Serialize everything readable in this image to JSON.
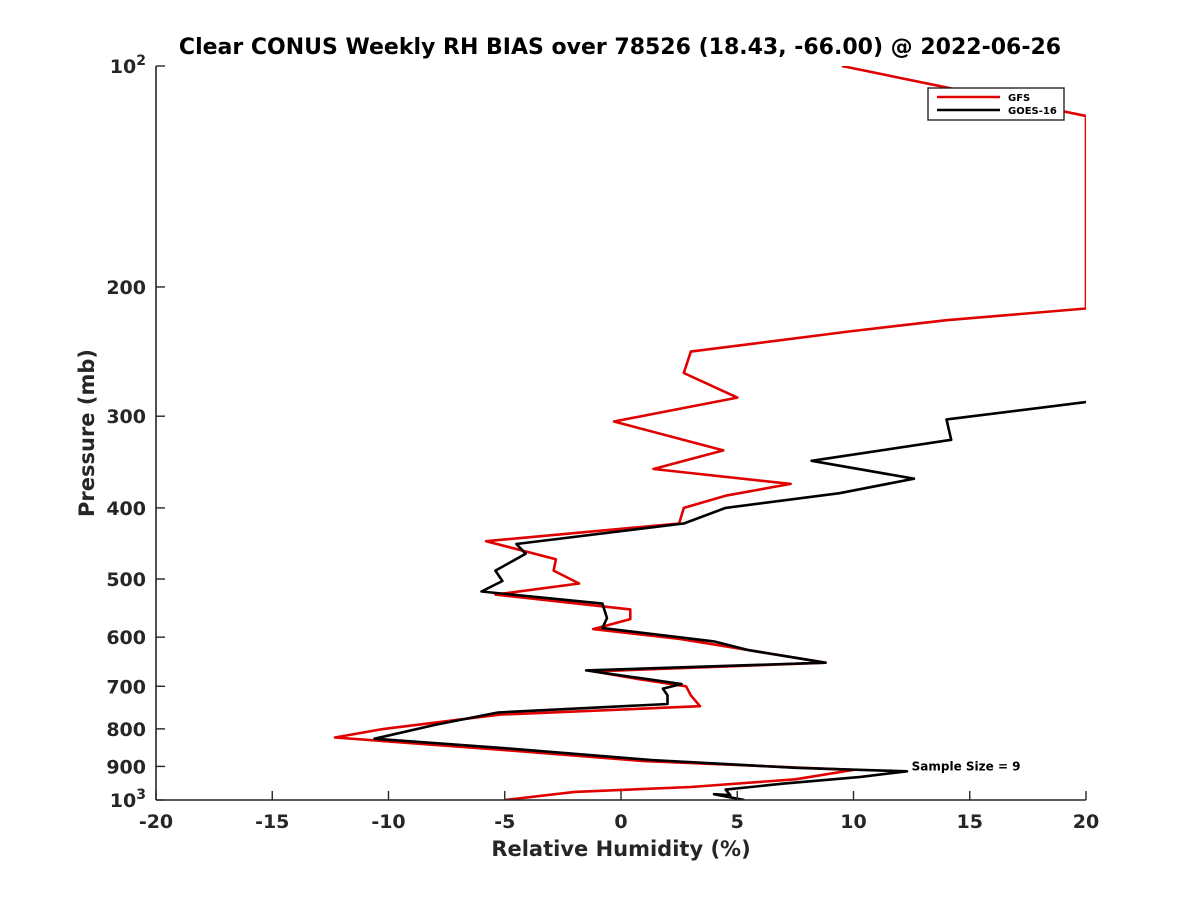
{
  "chart_data": {
    "type": "line",
    "title": "Clear CONUS Weekly RH BIAS over 78526 (18.43, -66.00) @ 2022-06-26",
    "xlabel": "Relative Humidity (%)",
    "ylabel": "Pressure (mb)",
    "xlim": [
      -20,
      20
    ],
    "ylim": [
      100,
      1000
    ],
    "y_scale": "log",
    "y_reversed": true,
    "xticks": [
      -20,
      -15,
      -10,
      -5,
      0,
      5,
      10,
      15,
      20
    ],
    "xtick_labels": [
      "-20",
      "-15",
      "-10",
      "-5",
      "0",
      "5",
      "10",
      "15",
      "20"
    ],
    "yticks": [
      100,
      200,
      300,
      400,
      500,
      600,
      700,
      800,
      900,
      1000
    ],
    "ytick_labels": [
      {
        "base": "10",
        "exp": "2"
      },
      {
        "base": "200",
        "exp": ""
      },
      {
        "base": "300",
        "exp": ""
      },
      {
        "base": "400",
        "exp": ""
      },
      {
        "base": "500",
        "exp": ""
      },
      {
        "base": "600",
        "exp": ""
      },
      {
        "base": "700",
        "exp": ""
      },
      {
        "base": "800",
        "exp": ""
      },
      {
        "base": "900",
        "exp": ""
      },
      {
        "base": "10",
        "exp": "3"
      }
    ],
    "grid": false,
    "legend_position": "top-right",
    "series": [
      {
        "name": "GFS",
        "color": "#e00000",
        "points": [
          [
            9.5,
            100
          ],
          [
            20,
            117
          ],
          [
            20,
            214
          ],
          [
            14,
            222
          ],
          [
            9.8,
            230
          ],
          [
            3,
            245
          ],
          [
            2.7,
            262
          ],
          [
            5,
            283
          ],
          [
            -0.3,
            305
          ],
          [
            4.4,
            334
          ],
          [
            1.4,
            354
          ],
          [
            7.3,
            371
          ],
          [
            4.5,
            385
          ],
          [
            2.7,
            400
          ],
          [
            2.5,
            420
          ],
          [
            -5.8,
            444
          ],
          [
            -2.8,
            470
          ],
          [
            -2.9,
            487
          ],
          [
            -1.8,
            507
          ],
          [
            -5.4,
            525
          ],
          [
            0.4,
            550
          ],
          [
            0.4,
            567
          ],
          [
            -1.2,
            585
          ],
          [
            2.5,
            603
          ],
          [
            8.8,
            650
          ],
          [
            -1.2,
            668
          ],
          [
            0.6,
            683
          ],
          [
            2.8,
            700
          ],
          [
            3.0,
            720
          ],
          [
            3.4,
            745
          ],
          [
            -5.2,
            765
          ],
          [
            -10.2,
            800
          ],
          [
            -12.3,
            822
          ],
          [
            -5,
            855
          ],
          [
            1,
            885
          ],
          [
            10.0,
            910
          ],
          [
            7.5,
            937
          ],
          [
            3,
            960
          ],
          [
            -2,
            975
          ],
          [
            -5,
            1000
          ]
        ]
      },
      {
        "name": "GOES-16",
        "color": "#000000",
        "points": [
          [
            20,
            287
          ],
          [
            14,
            303
          ],
          [
            14.2,
            323
          ],
          [
            8.2,
            345
          ],
          [
            12.6,
            365
          ],
          [
            9.4,
            382
          ],
          [
            4.5,
            400
          ],
          [
            2.7,
            420
          ],
          [
            -4.5,
            448
          ],
          [
            -4.1,
            462
          ],
          [
            -5.4,
            487
          ],
          [
            -5.1,
            503
          ],
          [
            -6.0,
            520
          ],
          [
            -0.8,
            540
          ],
          [
            -0.6,
            565
          ],
          [
            -0.8,
            583
          ],
          [
            4,
            608
          ],
          [
            5.5,
            625
          ],
          [
            8.8,
            650
          ],
          [
            -1.5,
            666
          ],
          [
            2.6,
            695
          ],
          [
            1.8,
            705
          ],
          [
            2.0,
            720
          ],
          [
            2.0,
            740
          ],
          [
            -5.3,
            760
          ],
          [
            -8.0,
            790
          ],
          [
            -10.6,
            825
          ],
          [
            -5,
            850
          ],
          [
            1.3,
            882
          ],
          [
            7.5,
            904
          ],
          [
            12.3,
            914
          ],
          [
            10.3,
            930
          ],
          [
            7.0,
            950
          ],
          [
            4.5,
            968
          ],
          [
            4.7,
            985
          ],
          [
            4.0,
            982
          ],
          [
            5.3,
            1000
          ]
        ]
      }
    ],
    "annotations": [
      {
        "text": "Sample Size = 9",
        "x": 12.5,
        "y": 900
      }
    ]
  }
}
